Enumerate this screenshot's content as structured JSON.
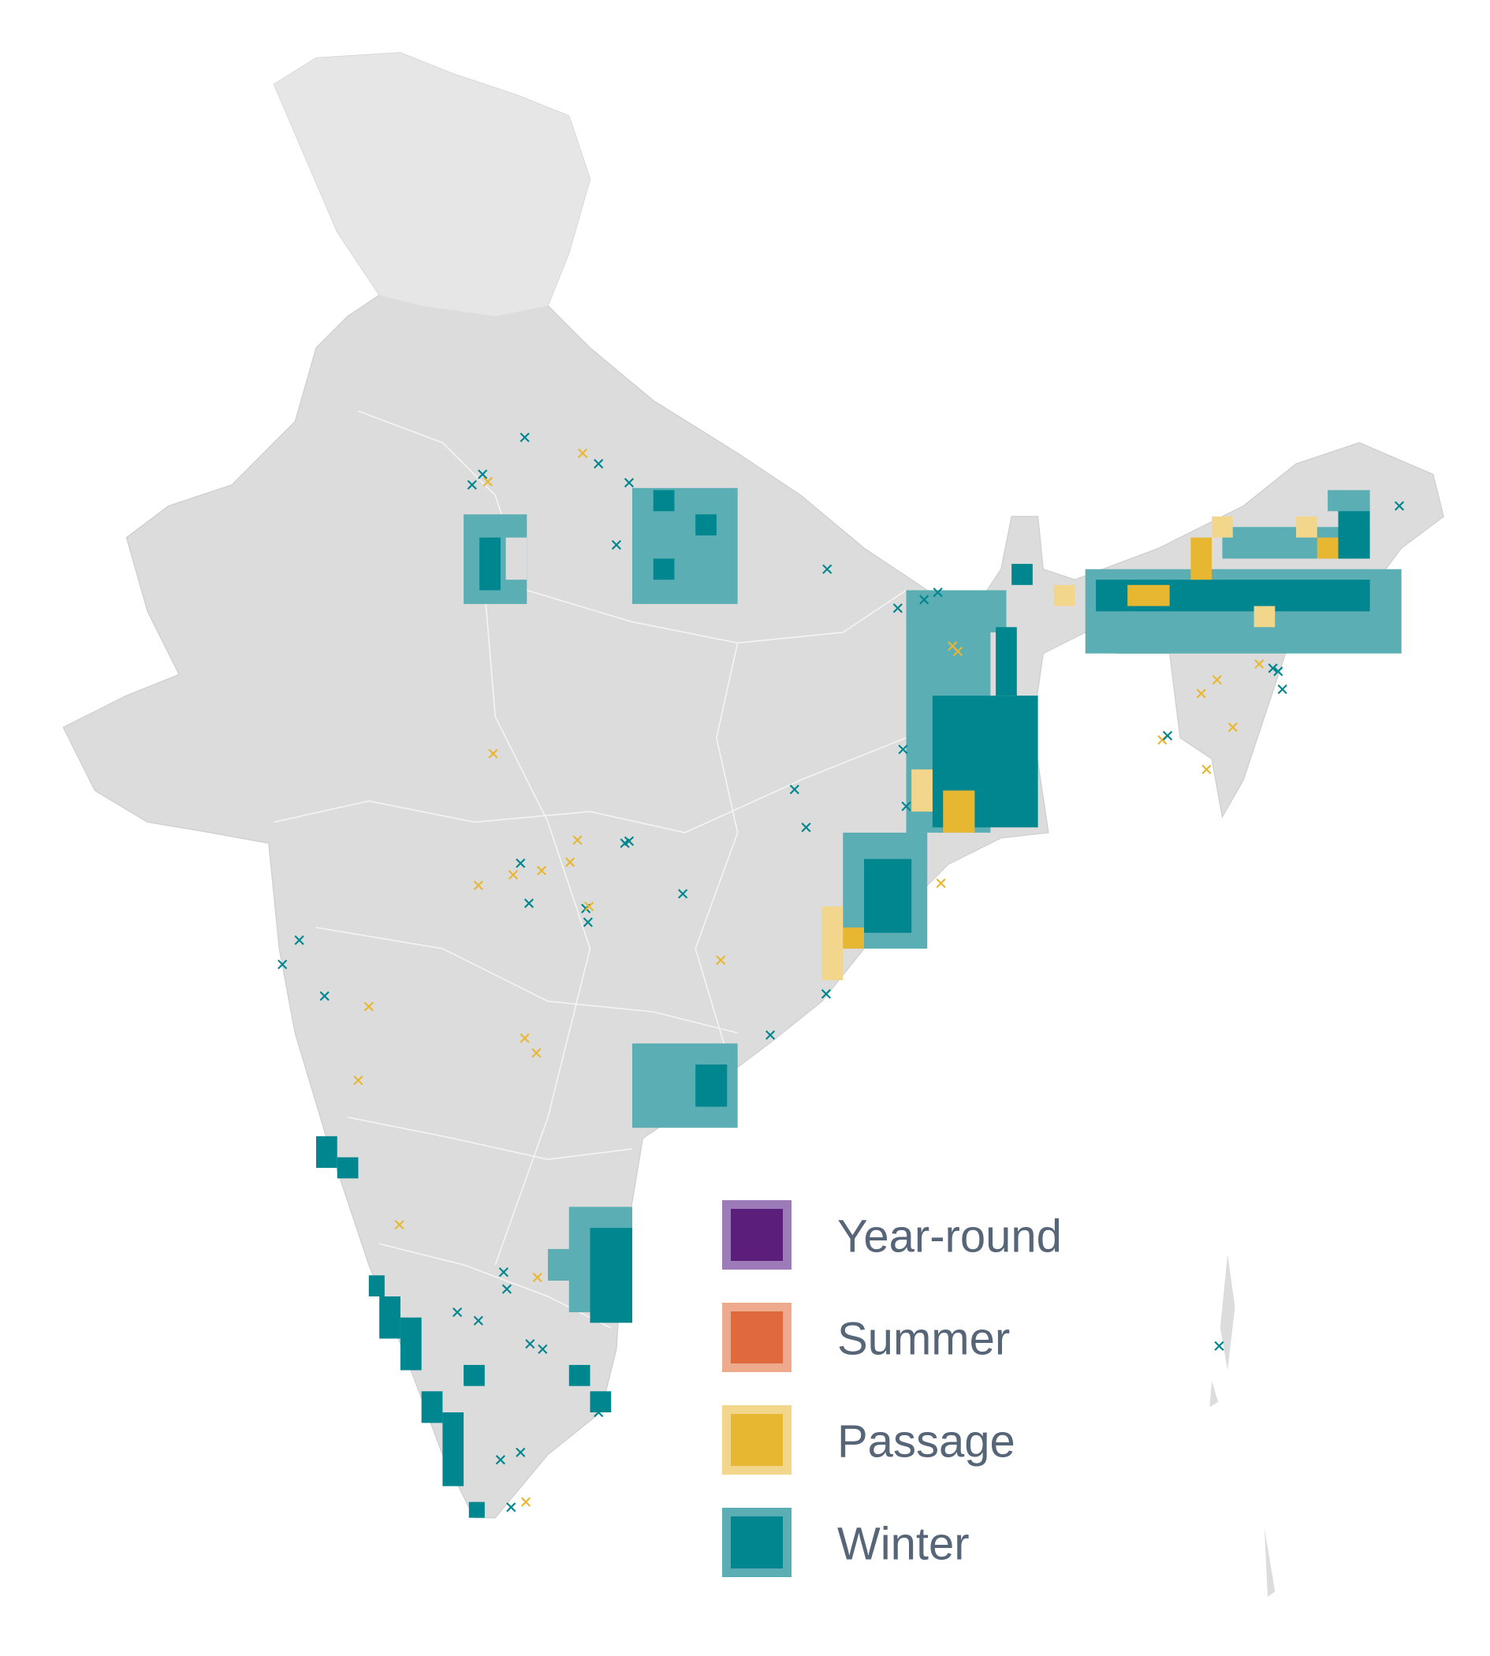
{
  "legend": {
    "items": [
      {
        "label": "Year-round",
        "color": "#5b1f7b",
        "border": "#9d7bb8"
      },
      {
        "label": "Summer",
        "color": "#e06a3e",
        "border": "#eeaa8c"
      },
      {
        "label": "Passage",
        "color": "#e8b732",
        "border": "#f2d68c"
      },
      {
        "label": "Winter",
        "color": "#00868e",
        "border": "#5aaeb4"
      }
    ]
  }
}
